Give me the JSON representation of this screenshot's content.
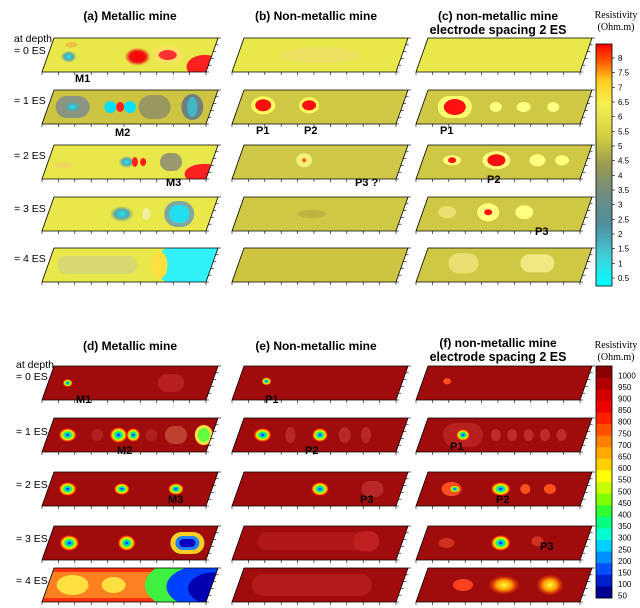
{
  "top": {
    "panels": [
      {
        "title": "(a) Metallic mine"
      },
      {
        "title": "(b) Non-metallic mine"
      },
      {
        "title": "(c) non-metallic mine",
        "title2": "electrode spacing 2 ES"
      }
    ],
    "depth_labels": [
      "at depth",
      "= 0 ES",
      "= 1 ES",
      "= 2 ES",
      "= 3 ES",
      "= 4 ES"
    ],
    "markers": {
      "a": [
        "M1",
        "M2",
        "M3"
      ],
      "b": [
        "P1",
        "P2",
        "P3 ?"
      ],
      "c": [
        "P1",
        "P2",
        "P3"
      ]
    },
    "colorbar": {
      "title1": "Resistivity",
      "title2": "(Ohm.m)",
      "ticks": [
        "8",
        "7.5",
        "7",
        "6.5",
        "6",
        "5.5",
        "5",
        "4.5",
        "4",
        "3.5",
        "3",
        "2.5",
        "2",
        "1.5",
        "1",
        "0.5"
      ]
    }
  },
  "bottom": {
    "panels": [
      {
        "title": "(d) Metallic mine"
      },
      {
        "title": "(e) Non-metallic mine"
      },
      {
        "title": "(f) non-metallic mine",
        "title2": "electrode spacing 2 ES"
      }
    ],
    "depth_labels": [
      "at depth",
      "= 0 ES",
      "= 1 ES",
      "= 2 ES",
      "= 3 ES",
      "= 4 ES"
    ],
    "markers": {
      "d": [
        "M1",
        "M2",
        "M3"
      ],
      "e": [
        "P1",
        "P2",
        "P3"
      ],
      "f": [
        "P1",
        "P2",
        "P3"
      ]
    },
    "colorbar": {
      "title1": "Resistivity",
      "title2": "(Ohm.m)",
      "ticks": [
        "1000",
        "950",
        "900",
        "850",
        "800",
        "750",
        "700",
        "650",
        "600",
        "550",
        "500",
        "450",
        "400",
        "350",
        "300",
        "250",
        "200",
        "150",
        "100",
        "50"
      ]
    }
  }
}
